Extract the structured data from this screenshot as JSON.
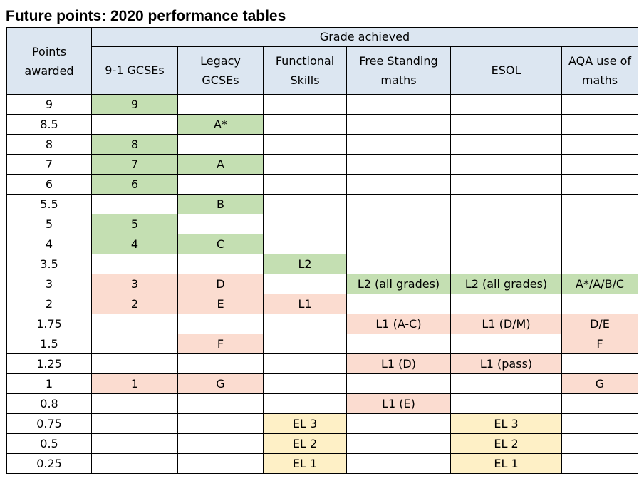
{
  "title": "Future points: 2020 performance tables",
  "table": {
    "points_header": "Points awarded",
    "group_header": "Grade achieved",
    "columns": [
      "9-1 GCSEs",
      "Legacy GCSEs",
      "Functional Skills",
      "Free Standing maths",
      "ESOL",
      "AQA use of maths"
    ],
    "rows": [
      {
        "points": "9",
        "cells": [
          "9",
          "",
          "",
          "",
          "",
          ""
        ]
      },
      {
        "points": "8.5",
        "cells": [
          "",
          "A*",
          "",
          "",
          "",
          ""
        ]
      },
      {
        "points": "8",
        "cells": [
          "8",
          "",
          "",
          "",
          "",
          ""
        ]
      },
      {
        "points": "7",
        "cells": [
          "7",
          "A",
          "",
          "",
          "",
          ""
        ]
      },
      {
        "points": "6",
        "cells": [
          "6",
          "",
          "",
          "",
          "",
          ""
        ]
      },
      {
        "points": "5.5",
        "cells": [
          "",
          "B",
          "",
          "",
          "",
          ""
        ]
      },
      {
        "points": "5",
        "cells": [
          "5",
          "",
          "",
          "",
          "",
          ""
        ]
      },
      {
        "points": "4",
        "cells": [
          "4",
          "C",
          "",
          "",
          "",
          ""
        ]
      },
      {
        "points": "3.5",
        "cells": [
          "",
          "",
          "L2",
          "",
          "",
          ""
        ]
      },
      {
        "points": "3",
        "cells": [
          "3",
          "D",
          "",
          "L2 (all grades)",
          "L2 (all grades)",
          "A*/A/B/C"
        ]
      },
      {
        "points": "2",
        "cells": [
          "2",
          "E",
          "L1",
          "",
          "",
          ""
        ]
      },
      {
        "points": "1.75",
        "cells": [
          "",
          "",
          "",
          "L1 (A-C)",
          "L1 (D/M)",
          "D/E"
        ]
      },
      {
        "points": "1.5",
        "cells": [
          "",
          "F",
          "",
          "",
          "",
          "F"
        ]
      },
      {
        "points": "1.25",
        "cells": [
          "",
          "",
          "",
          "L1 (D)",
          "L1 (pass)",
          ""
        ]
      },
      {
        "points": "1",
        "cells": [
          "1",
          "G",
          "",
          "",
          "",
          "G"
        ]
      },
      {
        "points": "0.8",
        "cells": [
          "",
          "",
          "",
          "L1 (E)",
          "",
          ""
        ]
      },
      {
        "points": "0.75",
        "cells": [
          "",
          "",
          "EL 3",
          "",
          "EL 3",
          ""
        ]
      },
      {
        "points": "0.5",
        "cells": [
          "",
          "",
          "EL 2",
          "",
          "EL 2",
          ""
        ]
      },
      {
        "points": "0.25",
        "cells": [
          "",
          "",
          "EL 1",
          "",
          "EL 1",
          ""
        ]
      }
    ],
    "fills": [
      [
        "g",
        "",
        "",
        "",
        "",
        ""
      ],
      [
        "",
        "g",
        "",
        "",
        "",
        ""
      ],
      [
        "g",
        "",
        "",
        "",
        "",
        ""
      ],
      [
        "g",
        "g",
        "",
        "",
        "",
        ""
      ],
      [
        "g",
        "",
        "",
        "",
        "",
        ""
      ],
      [
        "",
        "g",
        "",
        "",
        "",
        ""
      ],
      [
        "g",
        "",
        "",
        "",
        "",
        ""
      ],
      [
        "g",
        "g",
        "",
        "",
        "",
        ""
      ],
      [
        "",
        "",
        "g",
        "",
        "",
        ""
      ],
      [
        "p",
        "p",
        "",
        "g",
        "g",
        "g"
      ],
      [
        "p",
        "p",
        "p",
        "",
        "",
        ""
      ],
      [
        "",
        "",
        "",
        "p",
        "p",
        "p"
      ],
      [
        "",
        "p",
        "",
        "",
        "",
        "p"
      ],
      [
        "",
        "",
        "",
        "p",
        "p",
        ""
      ],
      [
        "p",
        "p",
        "",
        "",
        "",
        "p"
      ],
      [
        "",
        "",
        "",
        "p",
        "",
        ""
      ],
      [
        "",
        "",
        "y",
        "",
        "y",
        ""
      ],
      [
        "",
        "",
        "y",
        "",
        "y",
        ""
      ],
      [
        "",
        "",
        "y",
        "",
        "y",
        ""
      ]
    ],
    "colors": {
      "green": "#c4dfb2",
      "pink": "#fbdcd0",
      "yellow": "#fef0c6",
      "header": "#dce6f1"
    }
  }
}
